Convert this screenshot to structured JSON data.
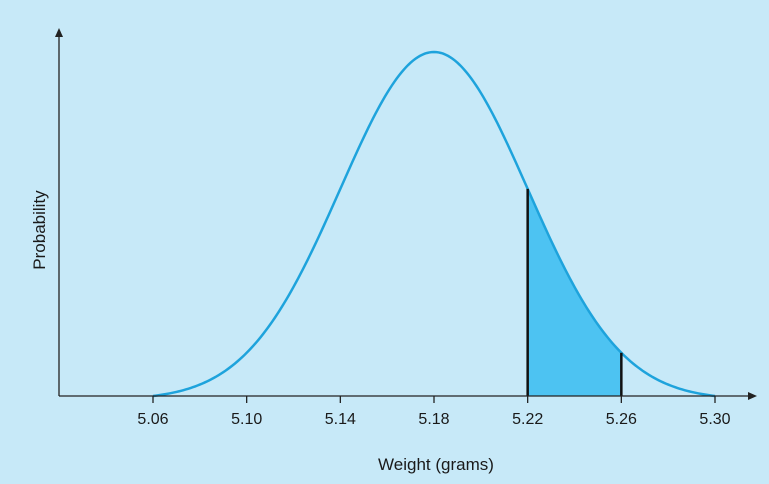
{
  "chart_data": {
    "type": "area",
    "xlabel": "Weight (grams)",
    "ylabel": "Probability",
    "title": "",
    "distribution": "normal",
    "mean": 5.18,
    "sd": 0.04,
    "xlim": [
      5.06,
      5.3
    ],
    "ticks": [
      5.06,
      5.1,
      5.14,
      5.18,
      5.22,
      5.26,
      5.3
    ],
    "tick_labels": [
      "5.06",
      "5.10",
      "5.14",
      "5.18",
      "5.22",
      "5.26",
      "5.30"
    ],
    "shaded_region": {
      "from": 5.22,
      "to": 5.26
    },
    "grid": false,
    "legend": "none"
  },
  "colors": {
    "background": "#c7e9f8",
    "curve": "#1ea3dc",
    "shade": "#4dc3f2",
    "axis": "#222222",
    "boundary": "#111111"
  }
}
